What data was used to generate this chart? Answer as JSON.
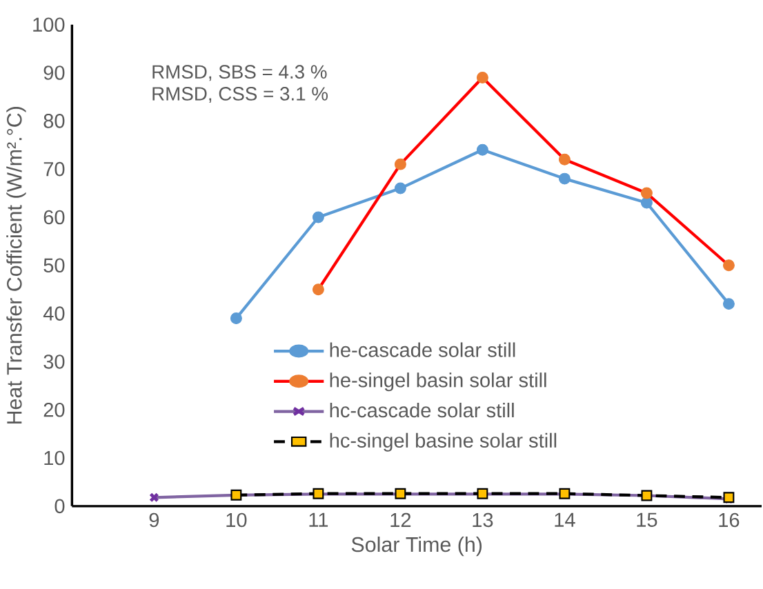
{
  "chart_data": {
    "type": "line",
    "xlabel": "Solar Time (h)",
    "ylabel": "Heat Transfer Cofficient (W/m².°C)",
    "x": [
      9,
      10,
      11,
      12,
      13,
      14,
      15,
      16
    ],
    "xlim": [
      8,
      16.4
    ],
    "xticks": [
      9,
      10,
      11,
      12,
      13,
      14,
      15,
      16
    ],
    "ylim": [
      0,
      100
    ],
    "yticks": [
      0,
      10,
      20,
      30,
      40,
      50,
      60,
      70,
      80,
      90,
      100
    ],
    "legend": "bottom",
    "annotations": [
      "RMSD, SBS = 4.3 %",
      "RMSD, CSS = 3.1 %"
    ],
    "series": [
      {
        "name": "he-cascade solar still",
        "color": "#5b9bd5",
        "marker": "circle",
        "line_style": "solid",
        "values": [
          null,
          39,
          60,
          66,
          74,
          68,
          63,
          42
        ]
      },
      {
        "name": "he-singel basin solar still",
        "color": "#ff0000",
        "colors": [
          null,
          null,
          "#ed7d31",
          "#ed7d31",
          "#ed7d31",
          "#ed7d31",
          "#ed7d31",
          "#ed7d31"
        ],
        "marker": "circle",
        "line_style": "solid",
        "values": [
          null,
          null,
          45,
          71,
          89,
          72,
          65,
          50
        ]
      },
      {
        "name": "hc-cascade solar still",
        "color": "#8064a2",
        "colors": [
          "#7030a0",
          "#7030a0",
          "#7030a0",
          "#7030a0",
          "#7030a0",
          "#7030a0",
          "#7030a0",
          "#7030a0"
        ],
        "marker": "cross",
        "line_style": "solid",
        "values": [
          1.8,
          2.3,
          2.5,
          2.5,
          2.5,
          2.5,
          2.2,
          1.5
        ]
      },
      {
        "name": "hc-singel basine solar still",
        "color": "#000000",
        "colors": [
          null,
          "#ffc000",
          "#ffc000",
          "#ffc000",
          "#ffc000",
          "#ffc000",
          "#ffc000",
          "#ffc000"
        ],
        "marker": "square",
        "line_style": "dashed",
        "values": [
          null,
          2.3,
          2.6,
          2.6,
          2.6,
          2.6,
          2.2,
          1.8
        ]
      }
    ]
  }
}
